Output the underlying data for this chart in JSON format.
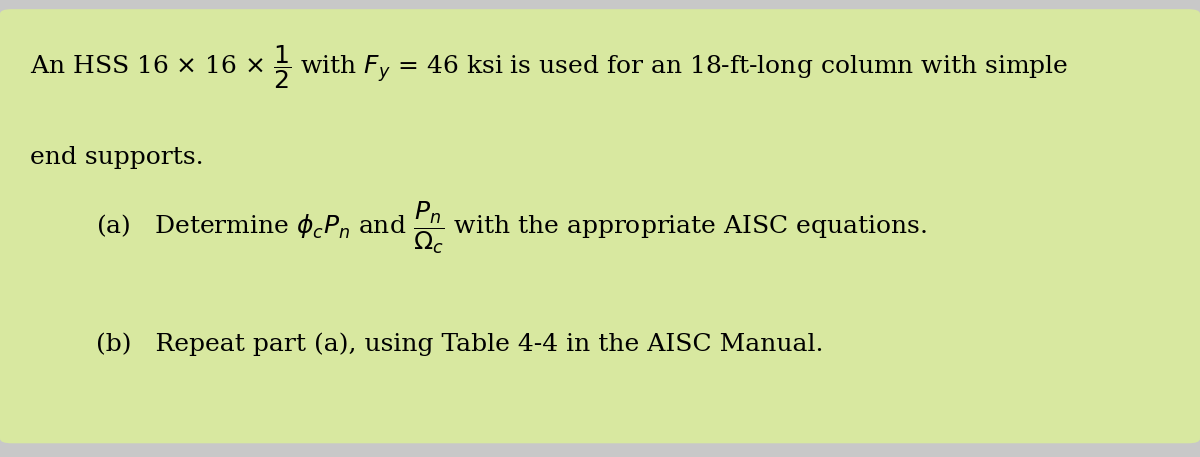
{
  "background_color": "#d8e8a0",
  "outer_bg": "#c8c8c8",
  "fig_width": 12.0,
  "fig_height": 4.57,
  "line1": "An HSS 16 × 16 × ",
  "line1_frac_num": "1",
  "line1_frac_den": "2",
  "line1_rest": " with ",
  "line1_F": "F",
  "line1_y_sub": "y",
  "line1_eq": " = 46 ksi is used for an 18-ft-long column with simple",
  "line2": "end supports.",
  "part_a_prefix": "(a)   Determine ϕ",
  "part_a_c": "c",
  "part_a_Pn": "P",
  "part_a_n": "n",
  "part_a_and": " and ",
  "part_a_Pn_num": "P",
  "part_a_Pn_num_sub": "n",
  "part_a_Om_den": "Ω",
  "part_a_Om_den_sub": "c",
  "part_a_rest": " with the appropriate AISC equations.",
  "part_b": "(b)   Repeat part (a), using Table 4-4 in the AISC Manual.",
  "font_size_main": 18,
  "font_size_small": 16,
  "font_family": "serif"
}
